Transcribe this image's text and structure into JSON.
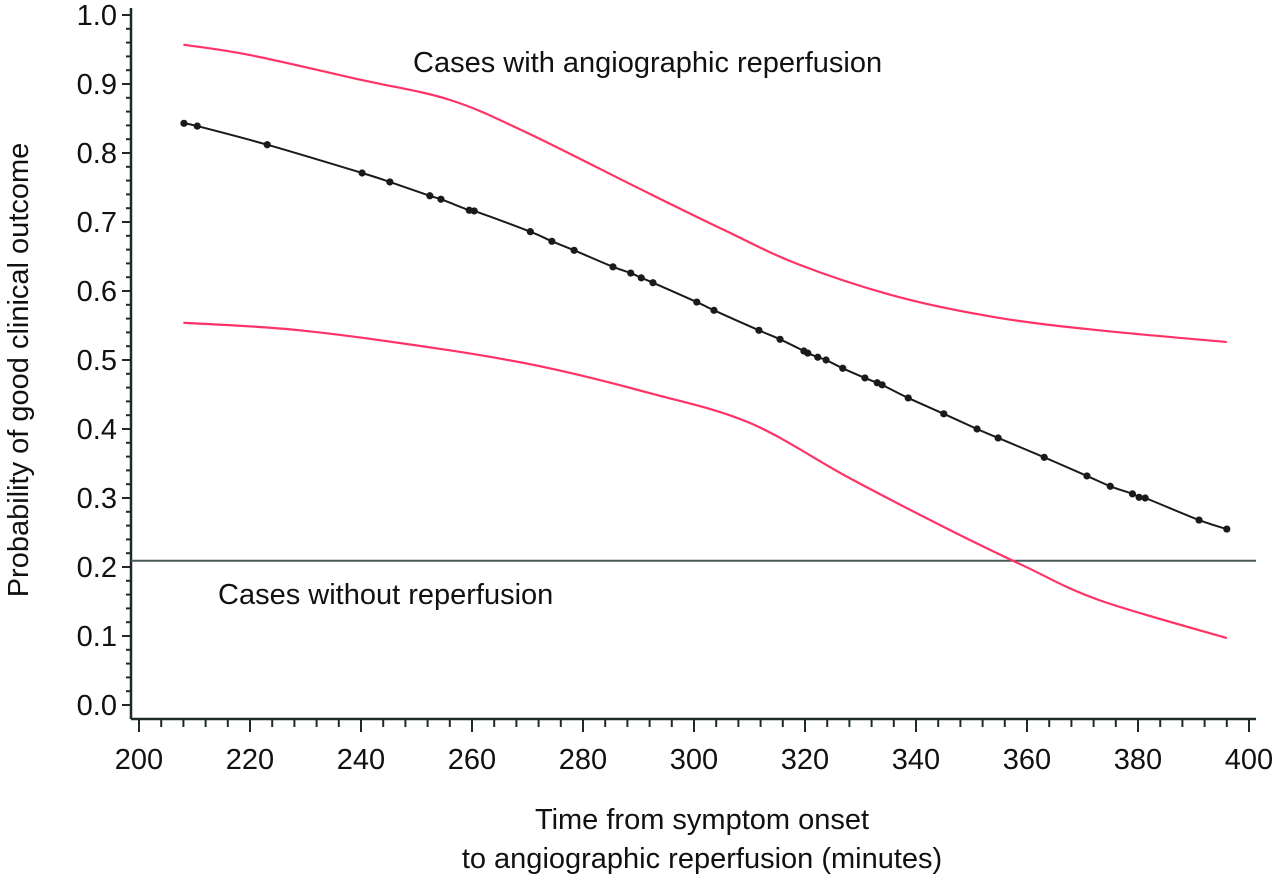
{
  "chart_data": {
    "type": "line",
    "xlabel_line1": "Time from symptom onset",
    "xlabel_line2": "to angiographic reperfusion (minutes)",
    "ylabel": "Probability of good clinical outcome",
    "xlim": [
      200,
      400
    ],
    "ylim": [
      0,
      1.0
    ],
    "x_ticks": [
      "200",
      "220",
      "240",
      "260",
      "280",
      "300",
      "320",
      "340",
      "360",
      "380",
      "400"
    ],
    "y_ticks": [
      "0.0",
      "0.1",
      "0.2",
      "0.3",
      "0.4",
      "0.5",
      "0.6",
      "0.7",
      "0.8",
      "0.9",
      "1.0"
    ],
    "grid": false,
    "annotations": {
      "with_reperfusion": "Cases with angiographic reperfusion",
      "without_reperfusion": "Cases without reperfusion"
    },
    "colors": {
      "estimate": "#1a1a1a",
      "ci": "#ff3366",
      "reference": "#4a5a5a"
    },
    "reference_line_y": 0.209,
    "estimate": {
      "x": [
        208.1,
        210.5,
        223.1,
        240.2,
        245.2,
        252.4,
        254.4,
        259.5,
        260.4,
        270.5,
        274.4,
        278.4,
        285.4,
        288.6,
        290.5,
        292.6,
        300.5,
        303.6,
        311.7,
        315.5,
        319.8,
        320.5,
        322.3,
        323.8,
        326.8,
        330.8,
        333.0,
        333.9,
        338.6,
        345.0,
        351.0,
        354.8,
        363.1,
        370.8,
        375.0,
        379.0,
        380.2,
        381.3,
        391.0,
        396.0
      ],
      "y": [
        0.843,
        0.839,
        0.812,
        0.771,
        0.758,
        0.738,
        0.733,
        0.717,
        0.716,
        0.686,
        0.672,
        0.659,
        0.635,
        0.626,
        0.619,
        0.612,
        0.584,
        0.572,
        0.543,
        0.53,
        0.513,
        0.51,
        0.504,
        0.5,
        0.488,
        0.474,
        0.467,
        0.464,
        0.445,
        0.422,
        0.4,
        0.387,
        0.359,
        0.332,
        0.317,
        0.306,
        0.301,
        0.3,
        0.268,
        0.255
      ]
    },
    "upper_ci": {
      "x": [
        208,
        220,
        240,
        256,
        270,
        290,
        305,
        319,
        337,
        355,
        373,
        396
      ],
      "y": [
        0.957,
        0.942,
        0.906,
        0.877,
        0.829,
        0.749,
        0.69,
        0.638,
        0.591,
        0.561,
        0.543,
        0.526
      ]
    },
    "lower_ci": {
      "x": [
        208,
        229,
        256,
        274,
        292,
        310,
        328,
        346,
        359.6,
        373,
        396
      ],
      "y": [
        0.554,
        0.543,
        0.514,
        0.488,
        0.452,
        0.409,
        0.329,
        0.254,
        0.201,
        0.152,
        0.097
      ]
    }
  }
}
